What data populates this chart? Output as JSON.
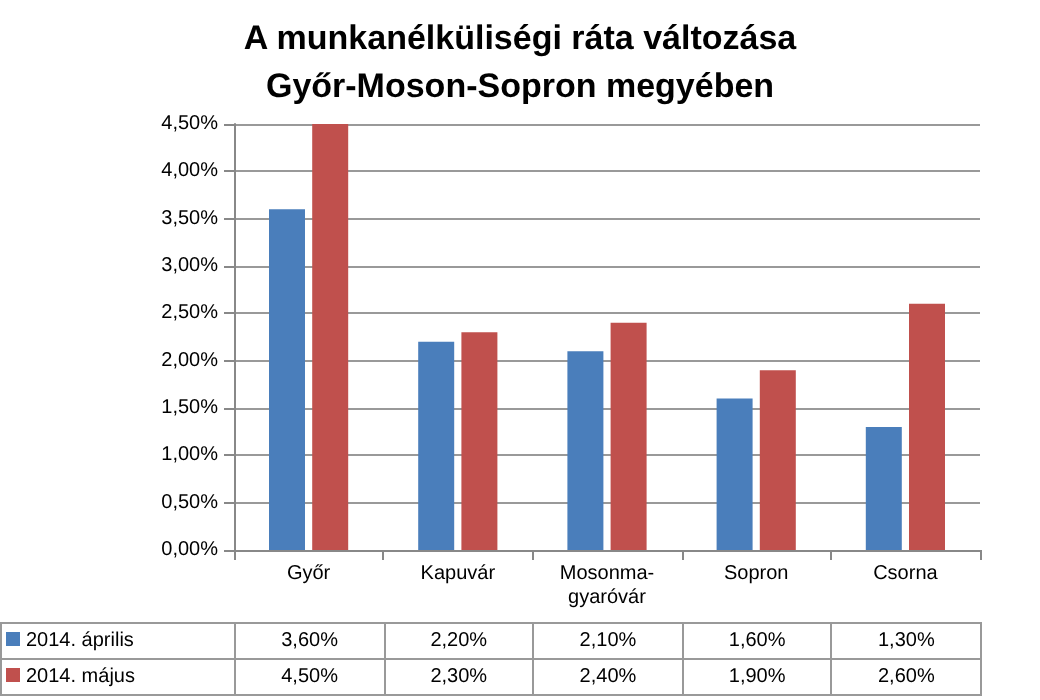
{
  "chart_data": {
    "type": "bar",
    "title": "A munkanélküliségi ráta változása\nGyőr-Moson-Sopron megyében",
    "categories": [
      "Győr",
      "Kapuvár",
      "Mosonma-\ngyaróvár",
      "Sopron",
      "Csorna"
    ],
    "series": [
      {
        "name": "2014. április",
        "color": "#4a7ebb",
        "values": [
          3.6,
          2.2,
          2.1,
          1.6,
          1.3
        ],
        "value_labels": [
          "3,60%",
          "2,20%",
          "2,10%",
          "1,60%",
          "1,30%"
        ]
      },
      {
        "name": "2014. május",
        "color": "#c0504d",
        "values": [
          4.5,
          2.3,
          2.4,
          1.9,
          2.6
        ],
        "value_labels": [
          "4,50%",
          "2,30%",
          "2,40%",
          "1,90%",
          "2,60%"
        ]
      }
    ],
    "ylim": [
      0,
      4.5
    ],
    "yticks": [
      {
        "value": 0,
        "label": "0,00%"
      },
      {
        "value": 0.5,
        "label": "0,50%"
      },
      {
        "value": 1,
        "label": "1,00%"
      },
      {
        "value": 1.5,
        "label": "1,50%"
      },
      {
        "value": 2,
        "label": "2,00%"
      },
      {
        "value": 2.5,
        "label": "2,50%"
      },
      {
        "value": 3,
        "label": "3,00%"
      },
      {
        "value": 3.5,
        "label": "3,50%"
      },
      {
        "value": 4,
        "label": "4,00%"
      },
      {
        "value": 4.5,
        "label": "4,50%"
      }
    ],
    "grid": "y",
    "legend": "bottom"
  }
}
